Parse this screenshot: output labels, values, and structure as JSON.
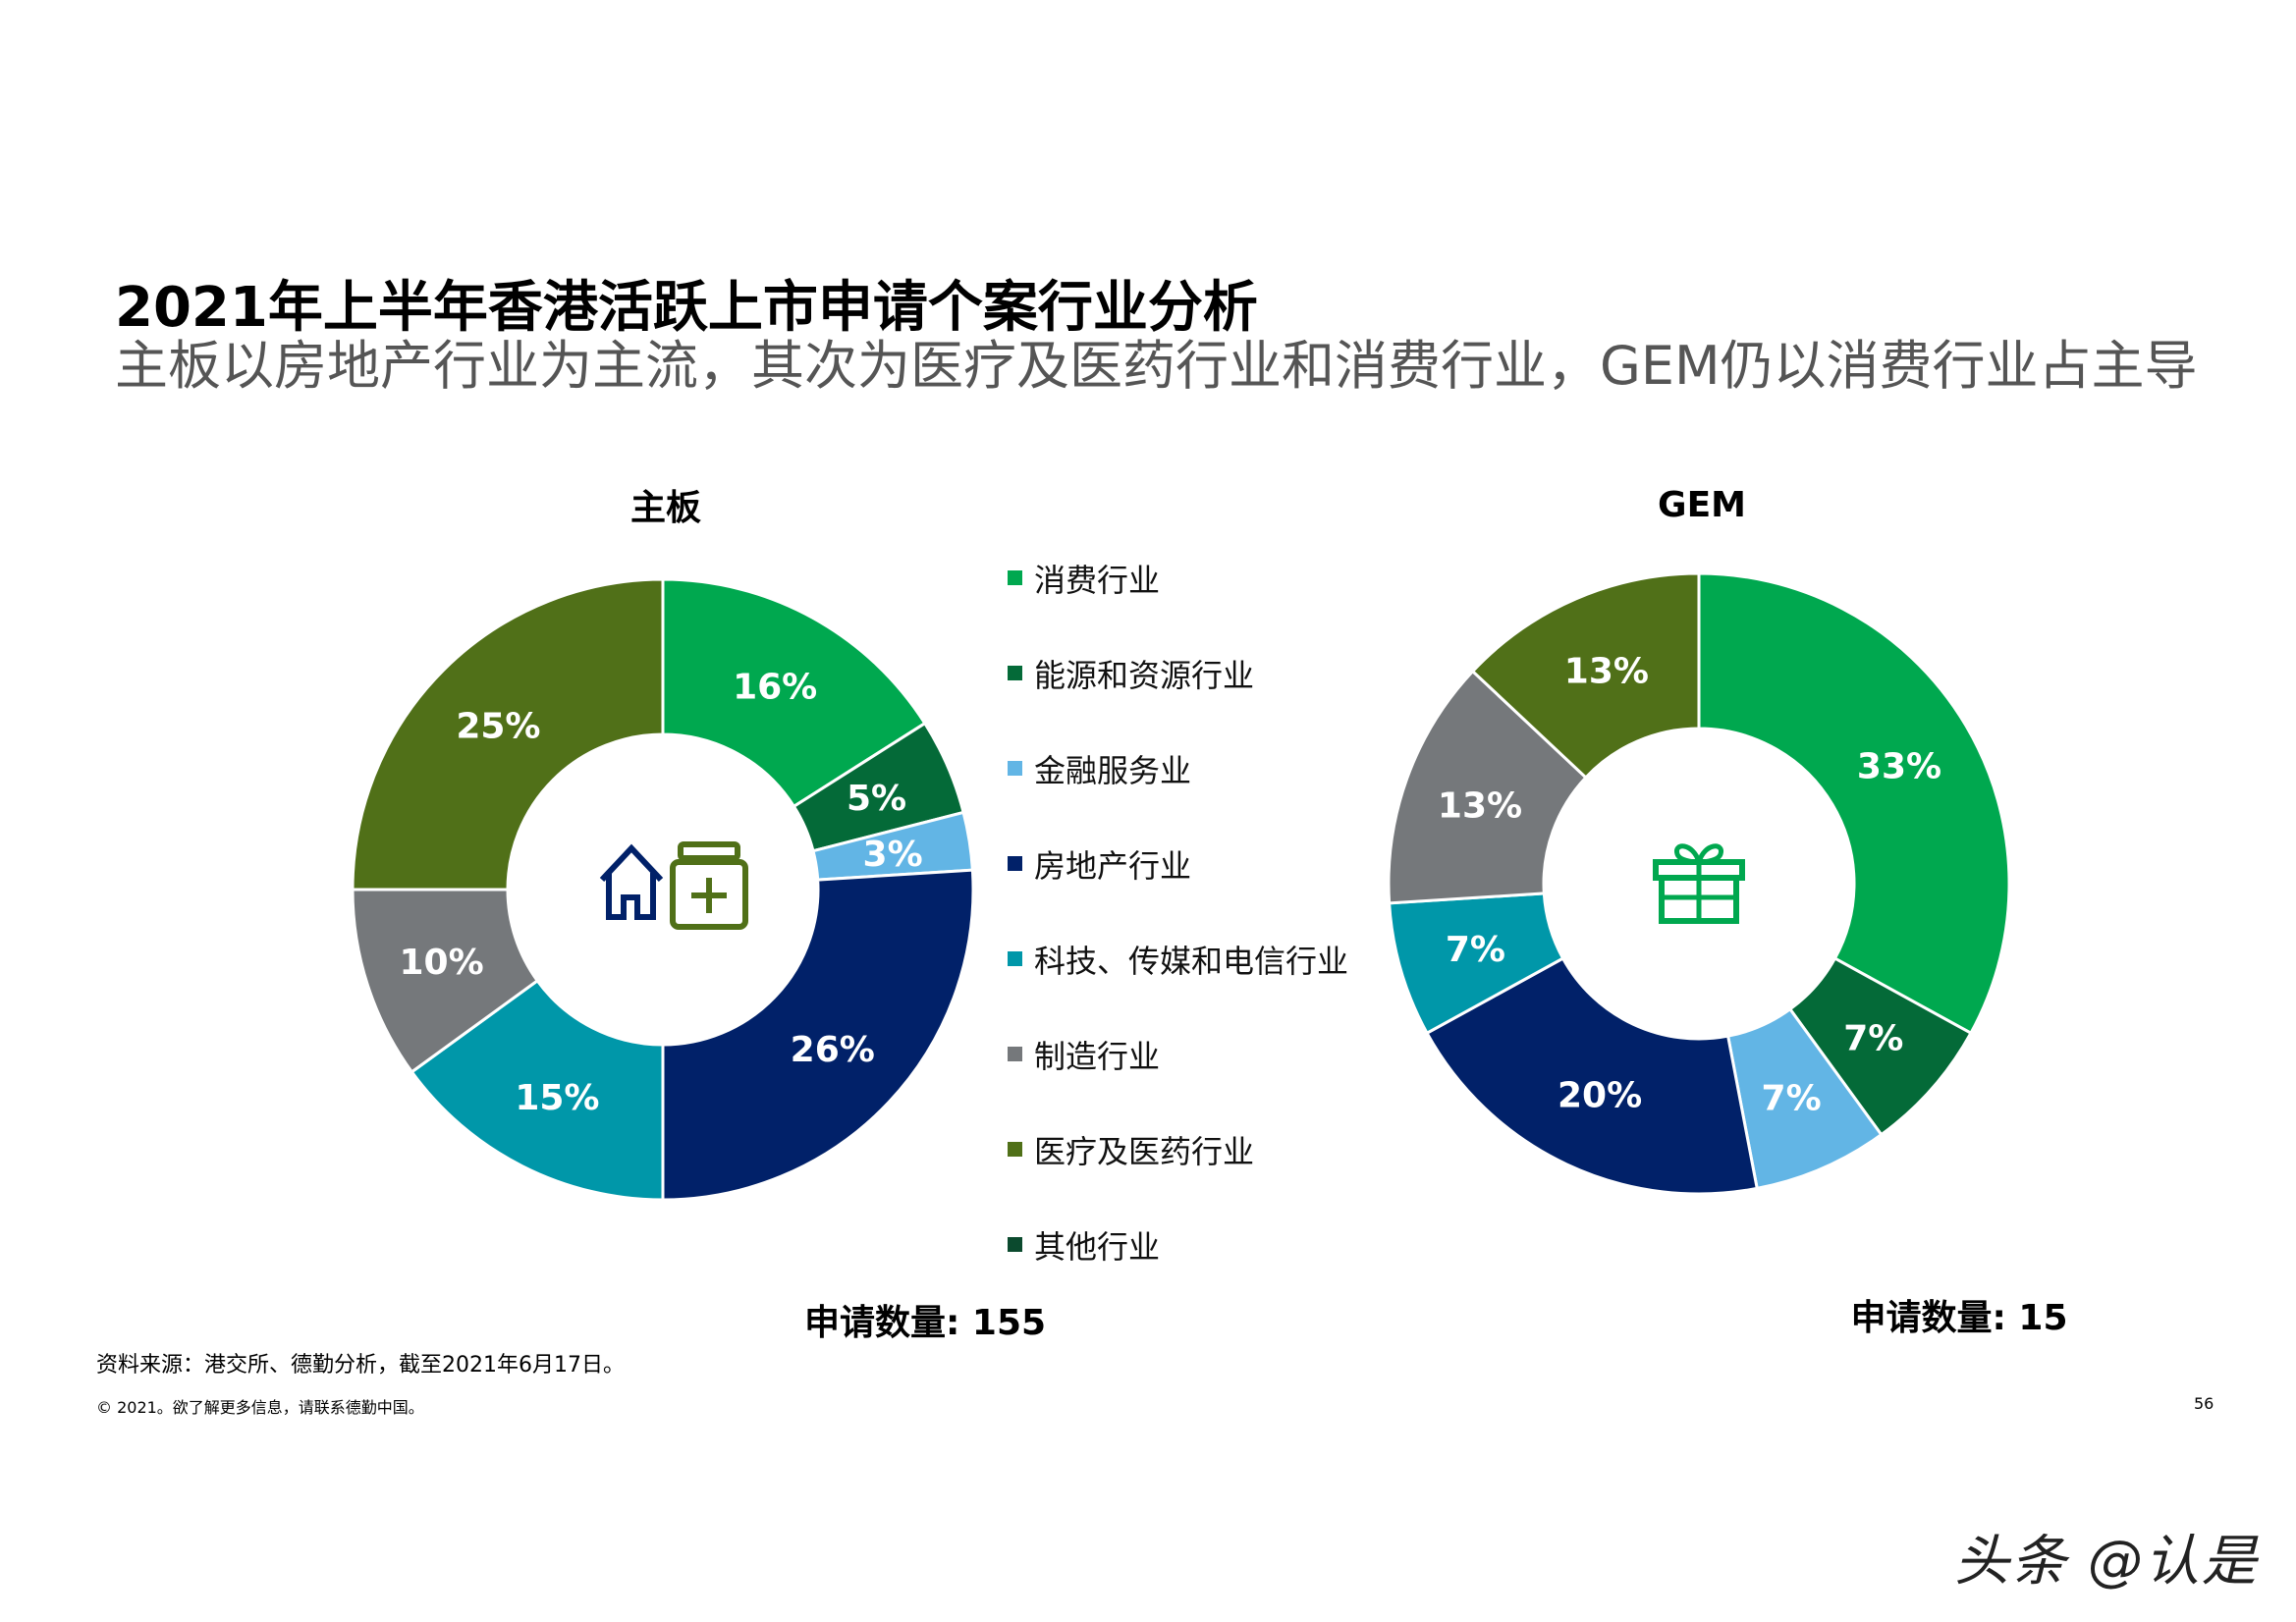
{
  "header": {
    "title": "2021年上半年香港活跃上市申请个案行业分析",
    "subtitle": "主板以房地产行业为主流，其次为医疗及医药行业和消费行业，GEM仍以消费行业占主导"
  },
  "legend": [
    {
      "label": "消费行业",
      "color": "#00A84F"
    },
    {
      "label": "能源和资源行业",
      "color": "#046A38"
    },
    {
      "label": "金融服务业",
      "color": "#62B5E5"
    },
    {
      "label": "房地产行业",
      "color": "#012169"
    },
    {
      "label": "科技、传媒和电信行业",
      "color": "#0097A9"
    },
    {
      "label": "制造行业",
      "color": "#75787B"
    },
    {
      "label": "医疗及医药行业",
      "color": "#507018"
    },
    {
      "label": "其他行业",
      "color": "#0B4A2E"
    }
  ],
  "chart_data": [
    {
      "type": "pie",
      "donut": true,
      "title": "主板",
      "categories": [
        "消费行业",
        "能源和资源行业",
        "金融服务业",
        "房地产行业",
        "科技、传媒和电信行业",
        "制造行业",
        "医疗及医药行业"
      ],
      "values": [
        16,
        5,
        3,
        26,
        15,
        10,
        25
      ],
      "labels": [
        "16%",
        "5%",
        "3%",
        "26%",
        "15%",
        "10%",
        "25%"
      ],
      "colors": [
        "#00A84F",
        "#046A38",
        "#62B5E5",
        "#012169",
        "#0097A9",
        "#75787B",
        "#507018"
      ],
      "center_icons": [
        "house-icon",
        "medicine-bottle-icon"
      ],
      "count_label": "申请数量: 155"
    },
    {
      "type": "pie",
      "donut": true,
      "title": "GEM",
      "categories": [
        "消费行业",
        "能源和资源行业",
        "金融服务业",
        "房地产行业",
        "科技、传媒和电信行业",
        "制造行业",
        "医疗及医药行业"
      ],
      "values": [
        33,
        7,
        7,
        20,
        7,
        13,
        13
      ],
      "labels": [
        "33%",
        "7%",
        "7%",
        "20%",
        "7%",
        "13%",
        "13%"
      ],
      "colors": [
        "#00A84F",
        "#046A38",
        "#62B5E5",
        "#012169",
        "#0097A9",
        "#75787B",
        "#507018"
      ],
      "center_icons": [
        "gift-icon"
      ],
      "count_label": "申请数量: 15"
    }
  ],
  "footer": {
    "source": "资料来源：港交所、德勤分析，截至2021年6月17日。",
    "copyright": "© 2021。欲了解更多信息，请联系德勤中国。",
    "page_number": "56",
    "watermark": "头条 @认是"
  }
}
